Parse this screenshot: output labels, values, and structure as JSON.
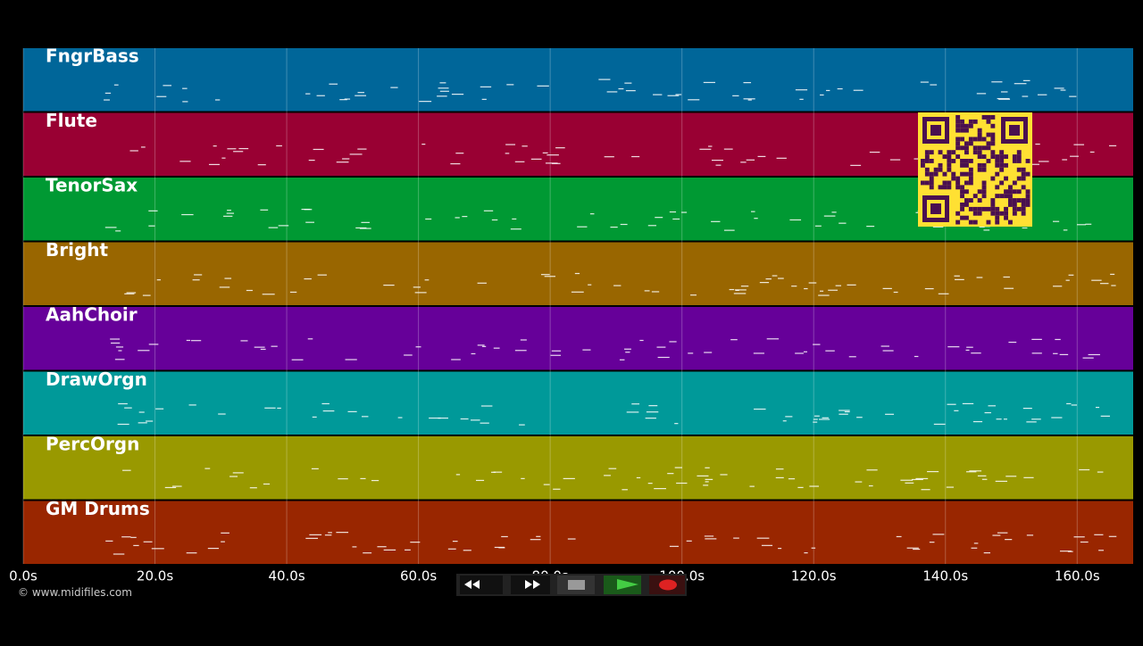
{
  "tracks": [
    {
      "name": "FngrBass",
      "color": "#006699"
    },
    {
      "name": "Flute",
      "color": "#990033"
    },
    {
      "name": "TenorSax",
      "color": "#009933"
    },
    {
      "name": "Bright",
      "color": "#996600"
    },
    {
      "name": "AahChoir",
      "color": "#660099"
    },
    {
      "name": "DrawOrgn",
      "color": "#009999"
    },
    {
      "name": "PercOrgn",
      "color": "#999900"
    },
    {
      "name": "GM Drums",
      "color": "#992600"
    }
  ],
  "time_axis": {
    "xlim": [
      0,
      168.5
    ],
    "ticks": [
      {
        "value": 0,
        "label": "0.0s"
      },
      {
        "value": 20,
        "label": "20.0s"
      },
      {
        "value": 40,
        "label": "40.0s"
      },
      {
        "value": 60,
        "label": "60.0s"
      },
      {
        "value": 80,
        "label": "80.0s"
      },
      {
        "value": 100,
        "label": "100.0s"
      },
      {
        "value": 120,
        "label": "120.0s"
      },
      {
        "value": 140,
        "label": "140.0s"
      },
      {
        "value": 160,
        "label": "160.0s"
      }
    ]
  },
  "copyright": "© www.midifiles.com"
}
